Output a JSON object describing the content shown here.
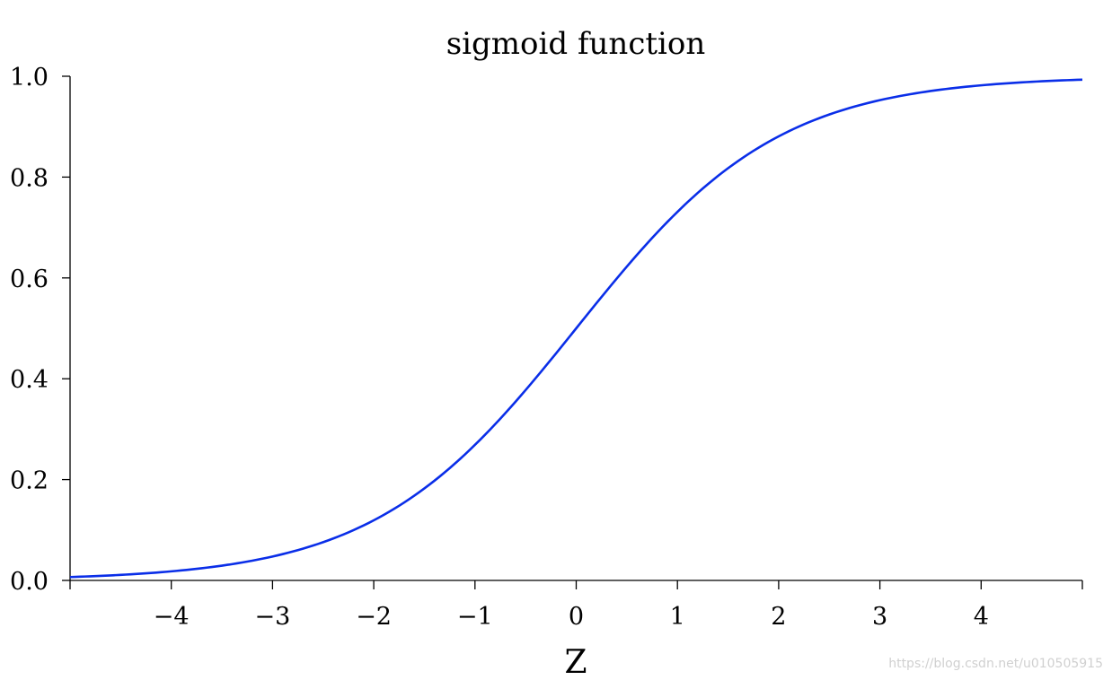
{
  "chart_data": {
    "type": "line",
    "title": "sigmoid function",
    "xlabel": "Z",
    "ylabel": "",
    "xlim": [
      -5,
      5
    ],
    "ylim": [
      0,
      1
    ],
    "x_ticks": [
      -4,
      -3,
      -2,
      -1,
      0,
      1,
      2,
      3,
      4
    ],
    "x_tick_labels": [
      "−4",
      "−3",
      "−2",
      "−1",
      "0",
      "1",
      "2",
      "3",
      "4"
    ],
    "y_ticks": [
      0,
      0.2,
      0.4,
      0.6,
      0.8,
      1.0
    ],
    "y_tick_labels": [
      "0.0",
      "0.2",
      "0.4",
      "0.6",
      "0.8",
      "1.0"
    ],
    "grid": false,
    "series": [
      {
        "color": "#0a2ee8",
        "x": [
          -5,
          -4.5,
          -4,
          -3.5,
          -3,
          -2.5,
          -2,
          -1.5,
          -1,
          -0.5,
          0,
          0.5,
          1,
          1.5,
          2,
          2.5,
          3,
          3.5,
          4,
          4.5,
          5
        ],
        "y": [
          0.0067,
          0.011,
          0.018,
          0.029,
          0.047,
          0.076,
          0.119,
          0.182,
          0.269,
          0.378,
          0.5,
          0.622,
          0.731,
          0.818,
          0.881,
          0.924,
          0.953,
          0.971,
          0.982,
          0.989,
          0.9933
        ]
      }
    ]
  },
  "watermark": "https://blog.csdn.net/u010505915"
}
